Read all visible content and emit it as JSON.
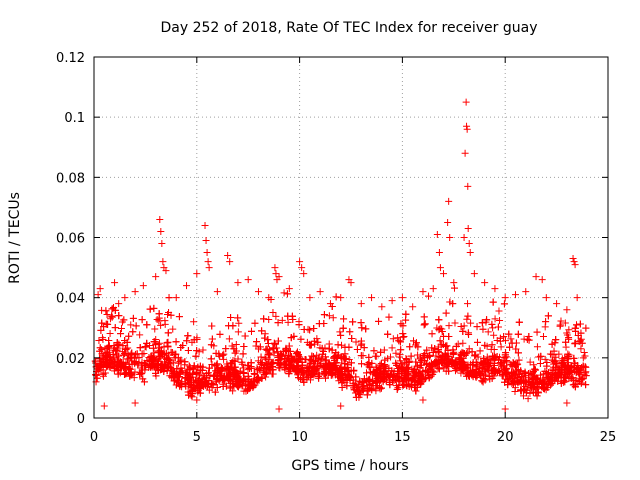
{
  "chart_data": {
    "type": "scatter",
    "title": "Day 252 of 2018, Rate Of TEC Index for receiver guay",
    "xlabel": "GPS time / hours",
    "ylabel": "ROTI / TECUs",
    "xlim": [
      0,
      25
    ],
    "ylim": [
      0,
      0.12
    ],
    "xticks": [
      0,
      5,
      10,
      15,
      20,
      25
    ],
    "xtick_labels": [
      "0",
      "5",
      "10",
      "15",
      "20",
      "25"
    ],
    "yticks": [
      0,
      0.02,
      0.04,
      0.06,
      0.08,
      0.1,
      0.12
    ],
    "ytick_labels": [
      "0",
      "0.02",
      "0.04",
      "0.06",
      "0.08",
      "0.1",
      "0.12"
    ],
    "grid": true,
    "marker": "+",
    "marker_color": "#ff0000",
    "series": [
      {
        "name": "ROTI",
        "description_of_bulk": "dense cloud of points from hour 0 to 24, mostly between 0.005 and 0.04",
        "points": [
          [
            0.1,
            0.012
          ],
          [
            0.2,
            0.041
          ],
          [
            0.3,
            0.043
          ],
          [
            0.4,
            0.02
          ],
          [
            0.8,
            0.033
          ],
          [
            1.0,
            0.045
          ],
          [
            1.2,
            0.038
          ],
          [
            1.5,
            0.04
          ],
          [
            2.0,
            0.042
          ],
          [
            2.4,
            0.044
          ],
          [
            3.0,
            0.047
          ],
          [
            3.2,
            0.066
          ],
          [
            3.25,
            0.062
          ],
          [
            3.3,
            0.058
          ],
          [
            3.35,
            0.052
          ],
          [
            3.4,
            0.05
          ],
          [
            3.5,
            0.049
          ],
          [
            4.0,
            0.04
          ],
          [
            4.5,
            0.044
          ],
          [
            5.0,
            0.048
          ],
          [
            5.4,
            0.064
          ],
          [
            5.45,
            0.059
          ],
          [
            5.5,
            0.055
          ],
          [
            5.55,
            0.052
          ],
          [
            5.6,
            0.05
          ],
          [
            6.0,
            0.042
          ],
          [
            6.5,
            0.054
          ],
          [
            6.6,
            0.052
          ],
          [
            7.0,
            0.045
          ],
          [
            7.5,
            0.046
          ],
          [
            8.0,
            0.042
          ],
          [
            8.5,
            0.04
          ],
          [
            8.8,
            0.05
          ],
          [
            8.85,
            0.048
          ],
          [
            8.9,
            0.046
          ],
          [
            9.0,
            0.047
          ],
          [
            9.5,
            0.043
          ],
          [
            10.0,
            0.052
          ],
          [
            10.1,
            0.05
          ],
          [
            10.2,
            0.048
          ],
          [
            10.5,
            0.04
          ],
          [
            11.0,
            0.042
          ],
          [
            11.5,
            0.038
          ],
          [
            12.0,
            0.04
          ],
          [
            12.4,
            0.046
          ],
          [
            12.5,
            0.045
          ],
          [
            13.0,
            0.038
          ],
          [
            13.5,
            0.04
          ],
          [
            14.0,
            0.037
          ],
          [
            14.5,
            0.039
          ],
          [
            15.0,
            0.04
          ],
          [
            15.5,
            0.037
          ],
          [
            16.0,
            0.042
          ],
          [
            16.5,
            0.043
          ],
          [
            16.7,
            0.061
          ],
          [
            16.8,
            0.055
          ],
          [
            16.85,
            0.05
          ],
          [
            17.0,
            0.048
          ],
          [
            17.2,
            0.065
          ],
          [
            17.25,
            0.072
          ],
          [
            17.3,
            0.06
          ],
          [
            17.5,
            0.045
          ],
          [
            18.0,
            0.06
          ],
          [
            18.05,
            0.088
          ],
          [
            18.1,
            0.105
          ],
          [
            18.12,
            0.097
          ],
          [
            18.15,
            0.096
          ],
          [
            18.18,
            0.077
          ],
          [
            18.2,
            0.063
          ],
          [
            18.25,
            0.058
          ],
          [
            18.3,
            0.055
          ],
          [
            18.5,
            0.048
          ],
          [
            19.0,
            0.045
          ],
          [
            19.5,
            0.043
          ],
          [
            20.0,
            0.04
          ],
          [
            20.5,
            0.041
          ],
          [
            21.0,
            0.042
          ],
          [
            21.5,
            0.047
          ],
          [
            21.8,
            0.046
          ],
          [
            22.0,
            0.04
          ],
          [
            22.5,
            0.038
          ],
          [
            23.0,
            0.036
          ],
          [
            23.3,
            0.053
          ],
          [
            23.35,
            0.052
          ],
          [
            23.4,
            0.051
          ],
          [
            23.5,
            0.04
          ],
          [
            23.8,
            0.02
          ],
          [
            23.9,
            0.015
          ],
          [
            0.5,
            0.004
          ],
          [
            2.0,
            0.005
          ],
          [
            5.0,
            0.006
          ],
          [
            9.0,
            0.003
          ],
          [
            12.0,
            0.004
          ],
          [
            16.0,
            0.006
          ],
          [
            20.0,
            0.003
          ],
          [
            23.0,
            0.005
          ]
        ]
      }
    ]
  }
}
